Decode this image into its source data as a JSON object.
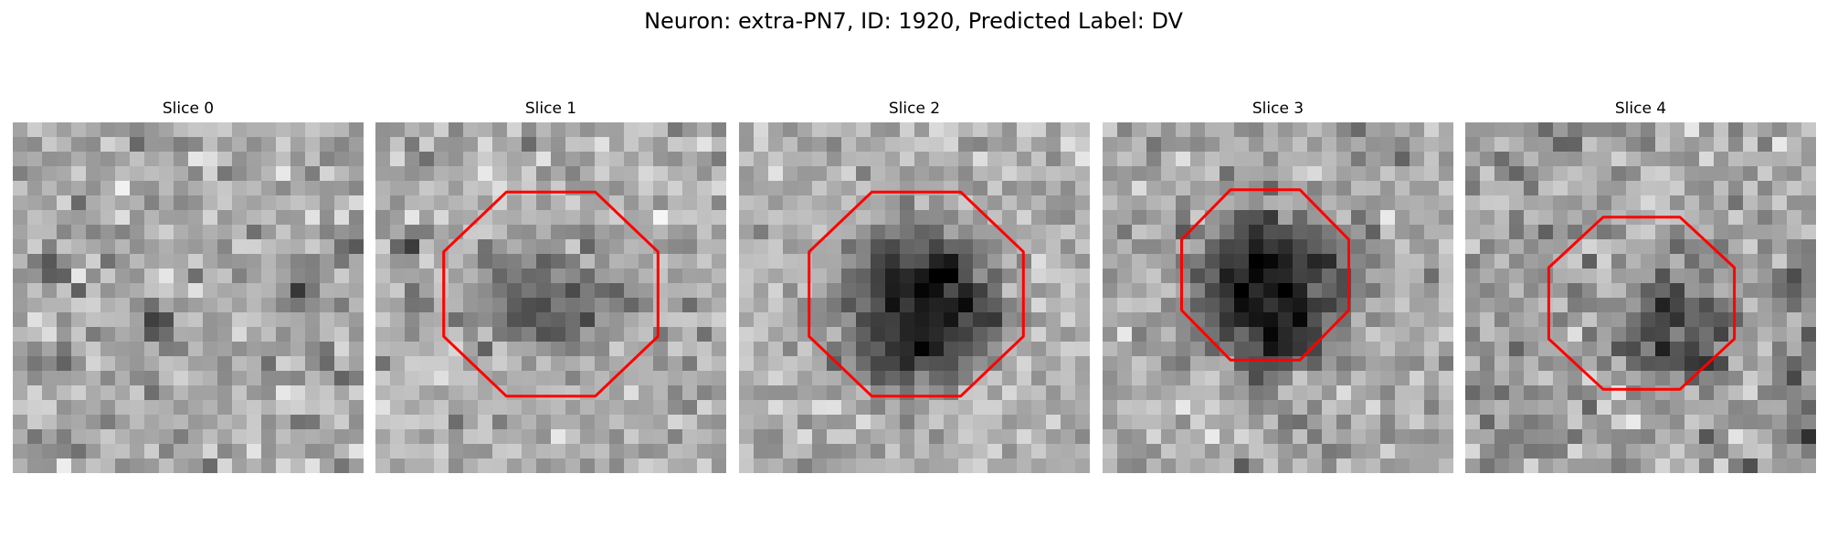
{
  "figure": {
    "title": "Neuron: extra-PN7, ID: 1920, Predicted Label: DV"
  },
  "colors": {
    "roi_outline": "#ff0000",
    "background": "#ffffff"
  },
  "slices": [
    {
      "title": "Slice 0",
      "has_roi": false
    },
    {
      "title": "Slice 1",
      "has_roi": true
    },
    {
      "title": "Slice 2",
      "has_roi": true
    },
    {
      "title": "Slice 3",
      "has_roi": true
    },
    {
      "title": "Slice 4",
      "has_roi": true
    }
  ]
}
